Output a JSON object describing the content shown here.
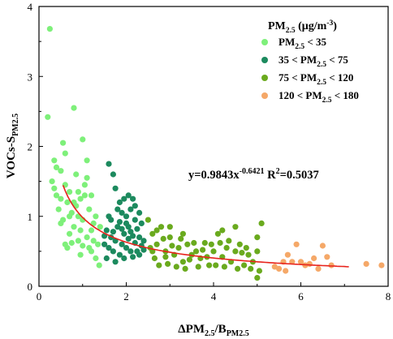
{
  "chart_data": {
    "type": "scatter",
    "xlabel": {
      "main": "ΔPM",
      "sub1": "2.5",
      "mid": "/B",
      "sub2": "PM2.5"
    },
    "ylabel": {
      "main": "VOCs-S",
      "sub": "PM2.5"
    },
    "xlim": [
      0,
      8
    ],
    "ylim": [
      0,
      4
    ],
    "xticks": [
      "0",
      "2",
      "4",
      "6",
      "8"
    ],
    "yticks": [
      "0",
      "1",
      "2",
      "3",
      "4"
    ],
    "legend": {
      "position": "top-right",
      "title": {
        "main": "PM",
        "sub": "2.5",
        "unit": " (μg/m",
        "sup": "-3",
        "end": ")"
      },
      "entries": [
        {
          "pre": "PM",
          "sub": "2.5",
          "post": "  < 35"
        },
        {
          "pre": "35 < PM",
          "sub": "2.5",
          "post": " < 75"
        },
        {
          "pre": "75 < PM",
          "sub": "2.5",
          "post": " < 120"
        },
        {
          "pre": "120 < PM",
          "sub": "2.5",
          "post": " < 180"
        }
      ]
    },
    "fit": {
      "a": 0.9843,
      "b": -0.6421,
      "x_range": [
        0.55,
        7.1
      ],
      "color": "#e8231c",
      "equation": {
        "main": "y=0.9843x",
        "sup": "-0.6421",
        "r": "  R",
        "r_sup": "2",
        "r_val": "=0.5037"
      }
    },
    "series": [
      {
        "color": "#7ef07a",
        "points": [
          [
            0.25,
            3.68
          ],
          [
            0.2,
            2.42
          ],
          [
            0.3,
            1.5
          ],
          [
            0.35,
            1.8
          ],
          [
            0.4,
            1.3
          ],
          [
            0.5,
            1.65
          ],
          [
            0.55,
            2.05
          ],
          [
            0.6,
            1.9
          ],
          [
            0.45,
            1.1
          ],
          [
            0.5,
            0.9
          ],
          [
            0.6,
            1.45
          ],
          [
            0.65,
            1.2
          ],
          [
            0.7,
            1.35
          ],
          [
            0.75,
            1.05
          ],
          [
            0.8,
            2.55
          ],
          [
            0.85,
            1.6
          ],
          [
            0.9,
            1.0
          ],
          [
            0.95,
            1.25
          ],
          [
            1.0,
            2.1
          ],
          [
            1.05,
            1.45
          ],
          [
            1.1,
            1.8
          ],
          [
            1.15,
            1.1
          ],
          [
            1.2,
            1.3
          ],
          [
            1.25,
            0.9
          ],
          [
            0.6,
            0.6
          ],
          [
            0.7,
            0.75
          ],
          [
            0.8,
            0.85
          ],
          [
            0.9,
            0.65
          ],
          [
            1.0,
            0.95
          ],
          [
            1.1,
            0.7
          ],
          [
            1.2,
            0.8
          ],
          [
            1.3,
            1.0
          ],
          [
            1.35,
            0.6
          ],
          [
            1.4,
            0.85
          ],
          [
            0.55,
            0.95
          ],
          [
            0.65,
            0.55
          ],
          [
            0.75,
            0.62
          ],
          [
            0.85,
            1.15
          ],
          [
            0.95,
            0.8
          ],
          [
            1.05,
            1.3
          ],
          [
            1.15,
            0.55
          ],
          [
            1.25,
            0.65
          ],
          [
            1.3,
            0.4
          ],
          [
            1.38,
            0.3
          ],
          [
            1.2,
            0.5
          ],
          [
            1.0,
            0.58
          ],
          [
            0.9,
            1.35
          ],
          [
            1.1,
            1.55
          ],
          [
            0.4,
            1.7
          ],
          [
            0.5,
            1.25
          ],
          [
            0.7,
            1.0
          ],
          [
            0.8,
            1.2
          ],
          [
            0.35,
            1.4
          ],
          [
            0.95,
            0.45
          ]
        ]
      },
      {
        "color": "#1c8a5e",
        "points": [
          [
            1.6,
            1.75
          ],
          [
            1.7,
            1.6
          ],
          [
            1.75,
            1.4
          ],
          [
            1.85,
            1.2
          ],
          [
            1.9,
            1.05
          ],
          [
            1.95,
            1.25
          ],
          [
            2.0,
            1.0
          ],
          [
            2.05,
            1.3
          ],
          [
            2.1,
            1.1
          ],
          [
            2.15,
            1.25
          ],
          [
            2.2,
            1.15
          ],
          [
            2.3,
            1.05
          ],
          [
            2.35,
            0.9
          ],
          [
            1.5,
            0.6
          ],
          [
            1.55,
            0.8
          ],
          [
            1.6,
            0.55
          ],
          [
            1.65,
            0.7
          ],
          [
            1.7,
            0.5
          ],
          [
            1.75,
            0.65
          ],
          [
            1.8,
            0.85
          ],
          [
            1.85,
            0.45
          ],
          [
            1.9,
            0.6
          ],
          [
            1.95,
            0.75
          ],
          [
            2.0,
            0.55
          ],
          [
            2.05,
            0.68
          ],
          [
            2.1,
            0.5
          ],
          [
            2.15,
            0.72
          ],
          [
            2.2,
            0.62
          ],
          [
            2.25,
            0.5
          ],
          [
            2.3,
            0.7
          ],
          [
            2.35,
            0.58
          ],
          [
            2.4,
            0.65
          ],
          [
            1.55,
            0.4
          ],
          [
            1.65,
            0.95
          ],
          [
            1.75,
            0.35
          ],
          [
            1.85,
            0.92
          ],
          [
            1.95,
            0.4
          ],
          [
            2.05,
            0.85
          ],
          [
            2.15,
            0.42
          ],
          [
            2.25,
            0.82
          ],
          [
            1.6,
            1.0
          ],
          [
            1.8,
            1.1
          ],
          [
            2.0,
            0.9
          ],
          [
            2.2,
            0.95
          ],
          [
            1.7,
            0.78
          ],
          [
            1.9,
            0.82
          ],
          [
            2.1,
            0.78
          ],
          [
            2.3,
            0.45
          ],
          [
            1.5,
            0.72
          ],
          [
            2.4,
            0.52
          ]
        ]
      },
      {
        "color": "#6aaa1e",
        "points": [
          [
            2.5,
            0.95
          ],
          [
            2.6,
            0.75
          ],
          [
            2.7,
            0.6
          ],
          [
            2.8,
            0.85
          ],
          [
            2.9,
            0.5
          ],
          [
            3.0,
            0.7
          ],
          [
            3.1,
            0.45
          ],
          [
            3.2,
            0.55
          ],
          [
            3.3,
            0.35
          ],
          [
            3.4,
            0.6
          ],
          [
            3.5,
            0.45
          ],
          [
            3.6,
            0.5
          ],
          [
            3.7,
            0.4
          ],
          [
            3.8,
            0.62
          ],
          [
            3.9,
            0.3
          ],
          [
            4.0,
            0.5
          ],
          [
            4.1,
            0.75
          ],
          [
            4.2,
            0.42
          ],
          [
            4.3,
            0.55
          ],
          [
            4.4,
            0.35
          ],
          [
            4.5,
            0.5
          ],
          [
            4.6,
            0.6
          ],
          [
            4.7,
            0.3
          ],
          [
            4.8,
            0.45
          ],
          [
            4.9,
            0.35
          ],
          [
            5.0,
            0.7
          ],
          [
            5.05,
            0.22
          ],
          [
            5.0,
            0.12
          ],
          [
            4.2,
            0.8
          ],
          [
            4.5,
            0.85
          ],
          [
            5.1,
            0.9
          ],
          [
            2.55,
            0.55
          ],
          [
            2.65,
            0.4
          ],
          [
            2.75,
            0.3
          ],
          [
            2.85,
            0.68
          ],
          [
            2.95,
            0.32
          ],
          [
            3.05,
            0.58
          ],
          [
            3.15,
            0.28
          ],
          [
            3.25,
            0.68
          ],
          [
            3.35,
            0.25
          ],
          [
            3.45,
            0.38
          ],
          [
            3.55,
            0.62
          ],
          [
            3.65,
            0.28
          ],
          [
            3.75,
            0.52
          ],
          [
            3.85,
            0.42
          ],
          [
            3.95,
            0.6
          ],
          [
            4.05,
            0.3
          ],
          [
            4.15,
            0.62
          ],
          [
            4.25,
            0.28
          ],
          [
            4.35,
            0.65
          ],
          [
            4.55,
            0.25
          ],
          [
            4.65,
            0.48
          ],
          [
            4.75,
            0.55
          ],
          [
            4.85,
            0.25
          ],
          [
            5.0,
            0.5
          ],
          [
            2.7,
            0.8
          ],
          [
            3.0,
            0.85
          ],
          [
            3.3,
            0.75
          ],
          [
            2.6,
            0.5
          ],
          [
            2.9,
            0.42
          ]
        ]
      },
      {
        "color": "#f5a868",
        "points": [
          [
            5.4,
            0.28
          ],
          [
            5.5,
            0.25
          ],
          [
            5.6,
            0.35
          ],
          [
            5.7,
            0.45
          ],
          [
            5.8,
            0.35
          ],
          [
            5.9,
            0.6
          ],
          [
            6.0,
            0.35
          ],
          [
            6.1,
            0.3
          ],
          [
            6.2,
            0.32
          ],
          [
            6.4,
            0.25
          ],
          [
            6.5,
            0.58
          ],
          [
            6.6,
            0.42
          ],
          [
            6.7,
            0.3
          ],
          [
            7.5,
            0.32
          ],
          [
            7.85,
            0.3
          ],
          [
            5.65,
            0.22
          ],
          [
            6.3,
            0.4
          ]
        ]
      }
    ]
  }
}
